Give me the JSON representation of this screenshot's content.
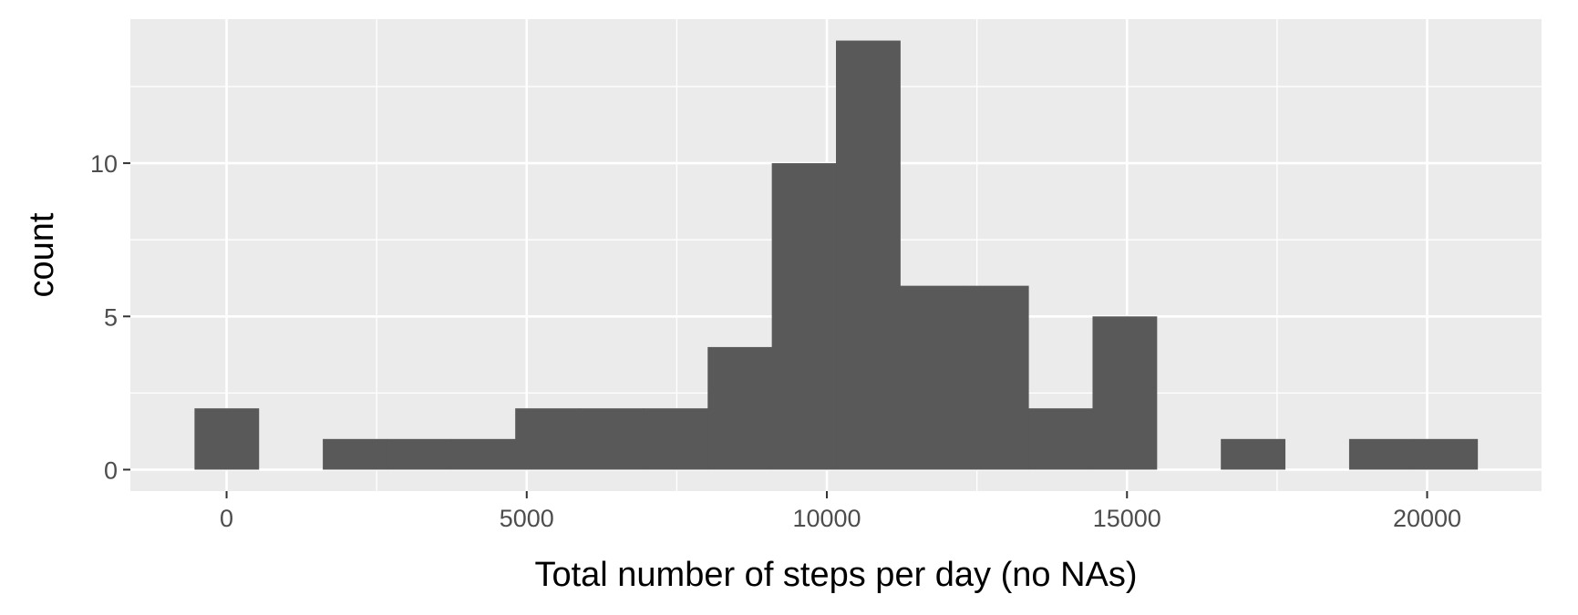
{
  "chart_data": {
    "type": "bar",
    "subtype": "histogram",
    "title": "",
    "xlabel": "Total number of steps per day (no NAs)",
    "ylabel": "count",
    "bin_width": 1068.6,
    "bins": [
      {
        "x_start": -534.3,
        "x_end": 534.3,
        "count": 2
      },
      {
        "x_start": 534.3,
        "x_end": 1602.9,
        "count": 0
      },
      {
        "x_start": 1602.9,
        "x_end": 2671.5,
        "count": 1
      },
      {
        "x_start": 2671.5,
        "x_end": 3740.1,
        "count": 1
      },
      {
        "x_start": 3740.1,
        "x_end": 4808.7,
        "count": 1
      },
      {
        "x_start": 4808.7,
        "x_end": 5877.3,
        "count": 2
      },
      {
        "x_start": 5877.3,
        "x_end": 6945.9,
        "count": 2
      },
      {
        "x_start": 6945.9,
        "x_end": 8014.5,
        "count": 2
      },
      {
        "x_start": 8014.5,
        "x_end": 9083.1,
        "count": 4
      },
      {
        "x_start": 9083.1,
        "x_end": 10151.7,
        "count": 10
      },
      {
        "x_start": 10151.7,
        "x_end": 11220.3,
        "count": 14
      },
      {
        "x_start": 11220.3,
        "x_end": 12288.9,
        "count": 6
      },
      {
        "x_start": 12288.9,
        "x_end": 13357.5,
        "count": 6
      },
      {
        "x_start": 13357.5,
        "x_end": 14426.1,
        "count": 2
      },
      {
        "x_start": 14426.1,
        "x_end": 15494.7,
        "count": 5
      },
      {
        "x_start": 15494.7,
        "x_end": 16563.3,
        "count": 0
      },
      {
        "x_start": 16563.3,
        "x_end": 17631.9,
        "count": 1
      },
      {
        "x_start": 17631.9,
        "x_end": 18700.5,
        "count": 0
      },
      {
        "x_start": 18700.5,
        "x_end": 19769.1,
        "count": 1
      },
      {
        "x_start": 19769.1,
        "x_end": 20837.7,
        "count": 1
      }
    ],
    "xlim": [
      -1603,
      21906
    ],
    "ylim": [
      -0.7,
      14.7
    ],
    "x_ticks": [
      0,
      5000,
      10000,
      15000,
      20000
    ],
    "x_tick_labels": [
      "0",
      "5000",
      "10000",
      "15000",
      "20000"
    ],
    "y_ticks": [
      0,
      5,
      10
    ],
    "y_tick_labels": [
      "0",
      "5",
      "10"
    ],
    "grid": true,
    "legend": "none",
    "colors": {
      "panel_background": "#ebebeb",
      "grid_major": "#ffffff",
      "bar_fill": "#595959",
      "tick_color": "#333333"
    }
  }
}
